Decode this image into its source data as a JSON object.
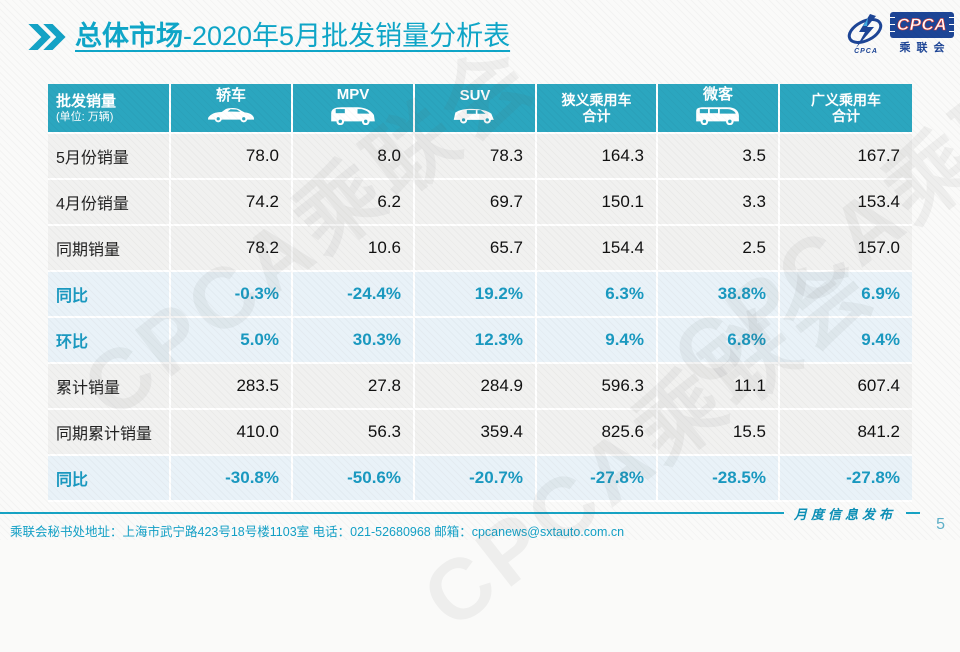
{
  "title": {
    "bold": "总体市场",
    "rest": "-2020年5月批发销量分析表"
  },
  "logo": {
    "cpca_text": "CPCA",
    "org_text": "乘联会",
    "small_text": "CPCA"
  },
  "table": {
    "header": {
      "col0": {
        "title": "批发销量",
        "subtitle": "(单位: 万辆)"
      },
      "columns": [
        {
          "label": "轿车",
          "icon": "sedan-car-icon"
        },
        {
          "label": "MPV",
          "icon": "mpv-car-icon"
        },
        {
          "label": "SUV",
          "icon": "suv-car-icon"
        },
        {
          "label": "狭义乘用车",
          "label2": "合计"
        },
        {
          "label": "微客",
          "icon": "microvan-icon"
        },
        {
          "label": "广义乘用车",
          "label2": "合计"
        }
      ]
    },
    "rows": [
      {
        "label": "5月份销量",
        "type": "normal",
        "values": [
          "78.0",
          "8.0",
          "78.3",
          "164.3",
          "3.5",
          "167.7"
        ]
      },
      {
        "label": "4月份销量",
        "type": "normal",
        "values": [
          "74.2",
          "6.2",
          "69.7",
          "150.1",
          "3.3",
          "153.4"
        ]
      },
      {
        "label": "同期销量",
        "type": "normal",
        "values": [
          "78.2",
          "10.6",
          "65.7",
          "154.4",
          "2.5",
          "157.0"
        ]
      },
      {
        "label": "同比",
        "type": "highlight",
        "values": [
          "-0.3%",
          "-24.4%",
          "19.2%",
          "6.3%",
          "38.8%",
          "6.9%"
        ]
      },
      {
        "label": "环比",
        "type": "highlight",
        "values": [
          "5.0%",
          "30.3%",
          "12.3%",
          "9.4%",
          "6.8%",
          "9.4%"
        ]
      },
      {
        "label": "累计销量",
        "type": "normal",
        "values": [
          "283.5",
          "27.8",
          "284.9",
          "596.3",
          "11.1",
          "607.4"
        ]
      },
      {
        "label": "同期累计销量",
        "type": "normal",
        "values": [
          "410.0",
          "56.3",
          "359.4",
          "825.6",
          "15.5",
          "841.2"
        ]
      },
      {
        "label": "同比",
        "type": "highlight",
        "values": [
          "-30.8%",
          "-50.6%",
          "-20.7%",
          "-27.8%",
          "-28.5%",
          "-27.8%"
        ]
      }
    ]
  },
  "watermark_text": "CPCA乘联会",
  "footer": {
    "address": "乘联会秘书处地址：上海市武宁路423号18号楼1103室 电话：021-52680968  邮箱：cpcanews@sxtauto.com.cn",
    "publication_label": "月度信息发布",
    "page_number": "5"
  },
  "colors": {
    "header_teal": "#2ba6bf",
    "title_teal": "#0fa6c8",
    "highlight_bg": "#e9f2f8",
    "highlight_text": "#1a99c0",
    "row_bg": "#f1f1f0",
    "footer_teal": "#17a3c4",
    "logo_blue": "#1d4596",
    "logo_red": "#e03a2f"
  }
}
